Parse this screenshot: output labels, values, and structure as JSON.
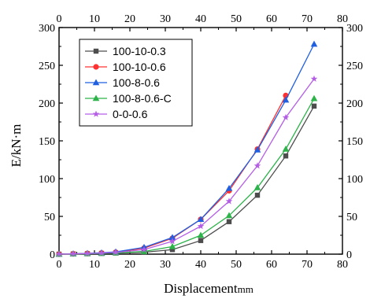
{
  "chart_data": {
    "type": "line",
    "xlabel": "Displacement",
    "xunit": "mm",
    "ylabel": "E/kN·m",
    "xlim": [
      0,
      80
    ],
    "ylim": [
      0,
      300
    ],
    "xticks": [
      0,
      10,
      20,
      30,
      40,
      50,
      60,
      70,
      80
    ],
    "yticks": [
      0,
      50,
      100,
      150,
      200,
      250,
      300
    ],
    "mirror_axes": true,
    "grid": false,
    "legend_position": "top-left",
    "series": [
      {
        "name": "100-10-0.3",
        "color": "#4d4d4d",
        "marker": "square",
        "x": [
          0,
          4,
          8,
          12,
          16,
          24,
          32,
          40,
          48,
          56,
          64,
          72
        ],
        "y": [
          0,
          0.3,
          0.6,
          1,
          1.5,
          2.5,
          6,
          18,
          43,
          78,
          130,
          196
        ]
      },
      {
        "name": "100-10-0.6",
        "color": "#ff3030",
        "marker": "circle",
        "x": [
          0,
          4,
          8,
          12,
          16,
          24,
          32,
          40,
          48,
          56,
          64
        ],
        "y": [
          0,
          0.4,
          0.9,
          1.5,
          2.5,
          8,
          21,
          46,
          84,
          139,
          210
        ]
      },
      {
        "name": "100-8-0.6",
        "color": "#1f5fe0",
        "marker": "triangle",
        "x": [
          0,
          4,
          8,
          12,
          16,
          24,
          32,
          40,
          48,
          56,
          64,
          72
        ],
        "y": [
          0,
          0.5,
          1,
          1.8,
          3,
          9,
          22,
          46,
          87,
          138,
          204,
          278
        ]
      },
      {
        "name": "100-8-0.6-C",
        "color": "#2db34a",
        "marker": "triangle",
        "x": [
          0,
          4,
          8,
          12,
          16,
          24,
          32,
          40,
          48,
          56,
          64,
          72
        ],
        "y": [
          0,
          0.3,
          0.6,
          1,
          1.6,
          3.5,
          10,
          25,
          51,
          88,
          139,
          206
        ]
      },
      {
        "name": "0-0-0.6",
        "color": "#b45ee6",
        "marker": "star",
        "x": [
          0,
          4,
          8,
          12,
          16,
          24,
          32,
          40,
          48,
          56,
          64,
          72
        ],
        "y": [
          0,
          0.4,
          0.8,
          1.3,
          2.2,
          6,
          17,
          37,
          70,
          117,
          181,
          232
        ]
      }
    ]
  }
}
